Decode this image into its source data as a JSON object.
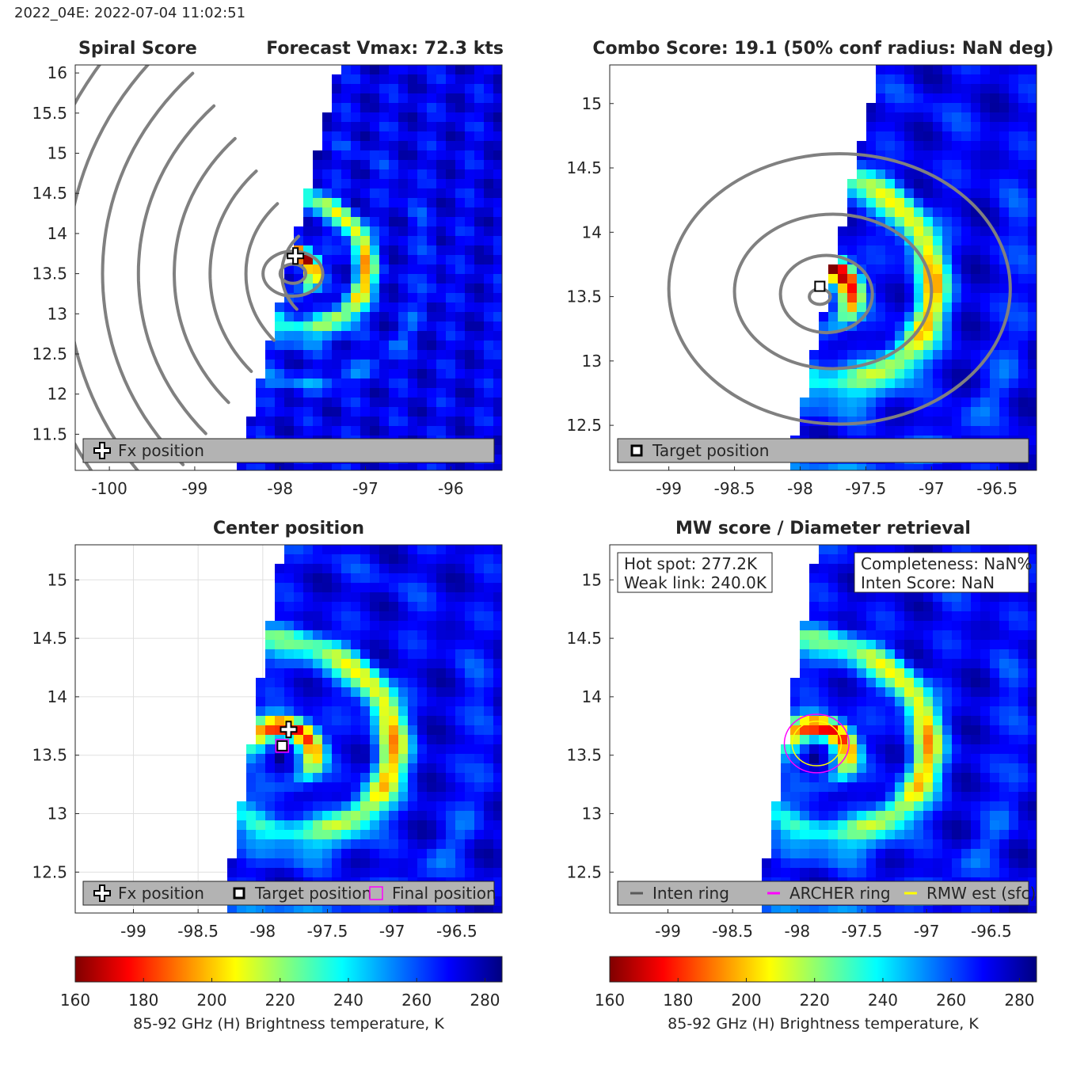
{
  "figure": {
    "title": "2022_04E: 2022-07-04 11:02:51"
  },
  "colors": {
    "contour": "#808080",
    "inten_ring": "#595959",
    "archer_ring": "#ff00ff",
    "rmw_ring": "#ffff00",
    "legend_bg": "#b3b3b3"
  },
  "chart_data": [
    {
      "type": "heatmap",
      "panel": "spiral-score",
      "title_left": "Spiral Score",
      "title_right": "Forecast Vmax: 72.3 kts",
      "xlim": [
        -100.4,
        -95.4
      ],
      "ylim": [
        11.05,
        16.1
      ],
      "xticks": [
        -100,
        -99,
        -98,
        -97,
        -96
      ],
      "yticks": [
        11.5,
        12,
        12.5,
        13,
        13.5,
        14,
        14.5,
        15,
        15.5,
        16
      ],
      "swath_edge_lon_at_lat_min": -98.5,
      "swath_edge_lon_at_lat_max": -97.3,
      "min_tb_k": 165,
      "eye_center": [
        -97.85,
        13.5
      ],
      "fx_position": [
        -97.82,
        13.72
      ],
      "legend": [
        "Fx position"
      ],
      "contours": "spiral"
    },
    {
      "type": "heatmap",
      "panel": "combo-score",
      "title_left": "",
      "title_right": "Combo Score: 19.1  (50% conf radius: NaN deg)",
      "xlim": [
        -99.45,
        -96.2
      ],
      "ylim": [
        12.15,
        15.3
      ],
      "xticks": [
        -99,
        -98.5,
        -98,
        -97.5,
        -97,
        -96.5
      ],
      "yticks": [
        12.5,
        13,
        13.5,
        14,
        14.5,
        15
      ],
      "swath_edge_lon_at_lat_min": -98.1,
      "swath_edge_lon_at_lat_max": -97.4,
      "min_tb_k": 165,
      "eye_center": [
        -97.85,
        13.5
      ],
      "target_position": [
        -97.85,
        13.58
      ],
      "legend": [
        "Target position"
      ],
      "contours": "combo"
    },
    {
      "type": "heatmap",
      "panel": "center-position",
      "title_left": "",
      "title_right": "Center position",
      "xlim": [
        -99.45,
        -96.15
      ],
      "ylim": [
        12.15,
        15.3
      ],
      "xticks": [
        -99,
        -98.5,
        -98,
        -97.5,
        -97,
        -96.5
      ],
      "yticks": [
        12.5,
        13,
        13.5,
        14,
        14.5,
        15
      ],
      "grid": true,
      "swath_edge_lon_at_lat_min": -98.3,
      "swath_edge_lon_at_lat_max": -97.85,
      "min_tb_k": 180,
      "eye_center": [
        -97.85,
        13.5
      ],
      "fx_position": [
        -97.8,
        13.72
      ],
      "target_position": [
        -97.85,
        13.58
      ],
      "final_position": [
        -97.85,
        13.58
      ],
      "legend": [
        "Fx position",
        "Target position",
        "Final position"
      ],
      "contours": "none"
    },
    {
      "type": "heatmap",
      "panel": "mw-score",
      "title_left": "",
      "title_right": "MW score / Diameter retrieval",
      "xlim": [
        -99.45,
        -96.15
      ],
      "ylim": [
        12.15,
        15.3
      ],
      "xticks": [
        -99,
        -98.5,
        -98,
        -97.5,
        -97,
        -96.5
      ],
      "yticks": [
        12.5,
        13,
        13.5,
        14,
        14.5,
        15
      ],
      "swath_edge_lon_at_lat_min": -98.3,
      "swath_edge_lon_at_lat_max": -97.85,
      "min_tb_k": 180,
      "eye_center": [
        -97.85,
        13.5
      ],
      "archer_ring_center": [
        -97.85,
        13.6
      ],
      "archer_ring_radius_deg": 0.25,
      "rmw_ring_center": [
        -97.85,
        13.6
      ],
      "rmw_ring_radius_deg": 0.19,
      "annotation_left": [
        "Hot spot: 277.2K",
        "Weak link: 240.0K"
      ],
      "annotation_right": [
        "Completeness: NaN%",
        "Inten Score: NaN"
      ],
      "legend": [
        "Inten ring",
        "ARCHER ring",
        "RMW est (sfc)"
      ],
      "contours": "none"
    }
  ],
  "colorbars": [
    {
      "min": 160,
      "max": 285,
      "ticks": [
        160,
        180,
        200,
        220,
        240,
        260,
        280
      ],
      "label": "85-92 GHz (H) Brightness temperature, K"
    },
    {
      "min": 160,
      "max": 285,
      "ticks": [
        160,
        180,
        200,
        220,
        240,
        260,
        280
      ],
      "label": "85-92 GHz (H) Brightness temperature, K"
    }
  ]
}
